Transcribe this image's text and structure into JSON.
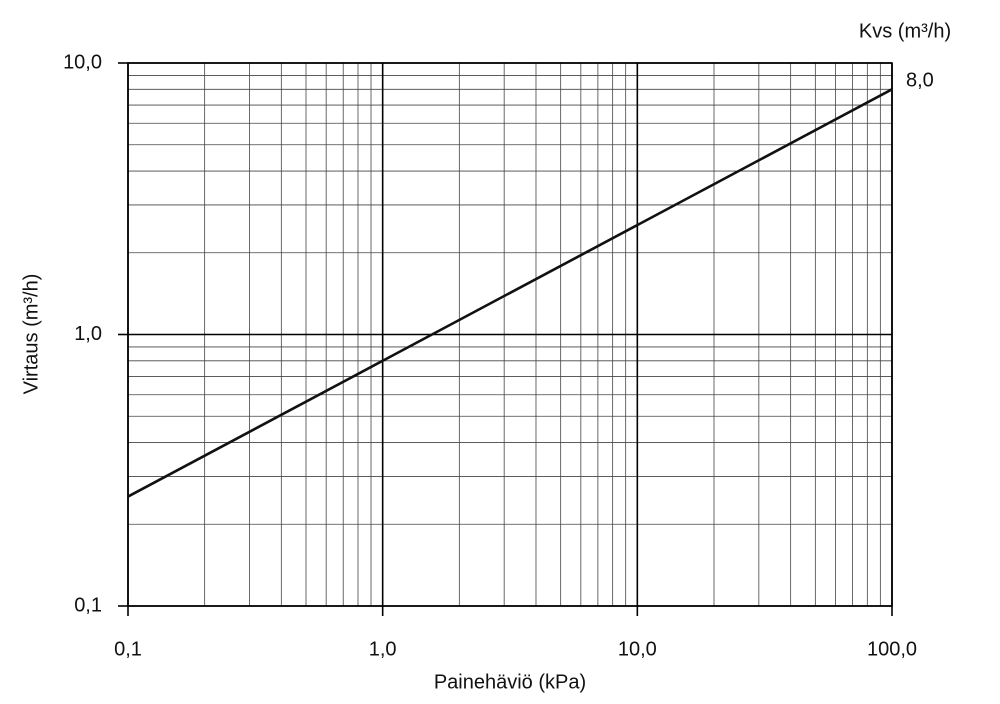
{
  "chart_data": {
    "type": "line",
    "xlabel": "Painehäviö (kPa)",
    "ylabel": "Virtaus (m³/h)",
    "legend_title": "Kvs (m³/h)",
    "log_x": true,
    "log_y": true,
    "grid": true,
    "x": [
      0.1,
      100
    ],
    "series": [
      {
        "name": "8,0",
        "color": "#111111",
        "values": [
          0.253,
          8.0
        ]
      }
    ],
    "xlim": [
      0.1,
      100
    ],
    "ylim": [
      0.1,
      10
    ],
    "xticks": [
      {
        "value": 0.1,
        "label": "0,1"
      },
      {
        "value": 1,
        "label": "1,0"
      },
      {
        "value": 10,
        "label": "10,0"
      },
      {
        "value": 100,
        "label": "100,0"
      }
    ],
    "yticks": [
      {
        "value": 0.1,
        "label": "0,1"
      },
      {
        "value": 1,
        "label": "1,0"
      },
      {
        "value": 10,
        "label": "10,0"
      }
    ],
    "x_minor_ticks": [
      0.2,
      0.3,
      0.4,
      0.5,
      0.6,
      0.7,
      0.8,
      0.9,
      2,
      3,
      4,
      5,
      6,
      7,
      8,
      9,
      20,
      30,
      40,
      50,
      60,
      70,
      80,
      90
    ],
    "y_minor_ticks": [
      0.2,
      0.3,
      0.4,
      0.5,
      0.6,
      0.7,
      0.8,
      0.9,
      2,
      3,
      4,
      5,
      6,
      7,
      8,
      9
    ]
  }
}
